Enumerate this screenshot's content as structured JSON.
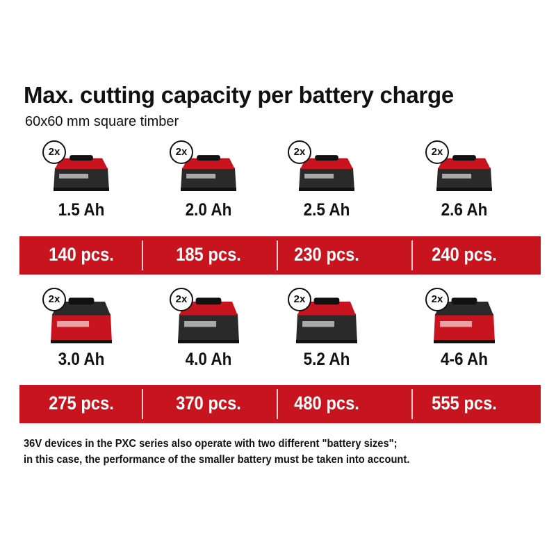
{
  "title": "Max. cutting capacity per battery charge",
  "subtitle": "60x60 mm square timber",
  "rows": [
    {
      "items": [
        {
          "badge": "2x",
          "capacity": "1.5 Ah",
          "pieces": "140 pcs."
        },
        {
          "badge": "2x",
          "capacity": "2.0 Ah",
          "pieces": "185 pcs."
        },
        {
          "badge": "2x",
          "capacity": "2.5 Ah",
          "pieces": "230 pcs."
        },
        {
          "badge": "2x",
          "capacity": "2.6 Ah",
          "pieces": "240 pcs."
        }
      ]
    },
    {
      "items": [
        {
          "badge": "2x",
          "capacity": "3.0 Ah",
          "pieces": "275 pcs."
        },
        {
          "badge": "2x",
          "capacity": "4.0 Ah",
          "pieces": "370 pcs."
        },
        {
          "badge": "2x",
          "capacity": "5.2 Ah",
          "pieces": "480 pcs."
        },
        {
          "badge": "2x",
          "capacity": "4-6 Ah",
          "pieces": "555 pcs."
        }
      ]
    }
  ],
  "footnote": [
    "36V devices in the PXC series also operate with two different \"battery sizes\";",
    "in this case, the performance of the smaller battery must be taken into account."
  ]
}
